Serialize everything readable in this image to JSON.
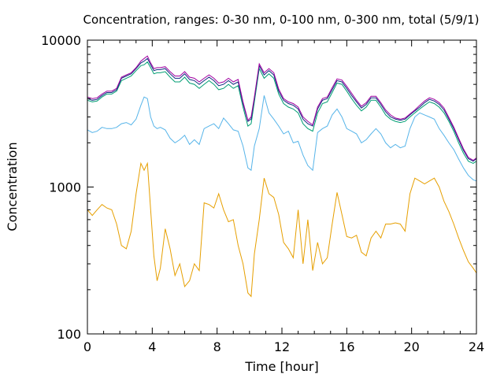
{
  "chart_data": {
    "type": "line",
    "title": "Concentration, ranges: 0-30 nm, 0-100 nm, 0-300 nm, total (5/9/1)",
    "xlabel": "Time [hour]",
    "ylabel": "Concentration",
    "xlim": [
      0,
      24
    ],
    "ylim": [
      100,
      10000
    ],
    "yscale": "log",
    "grid": false,
    "legend": "none",
    "x_ticks": [
      "0",
      "4",
      "8",
      "12",
      "16",
      "20",
      "24"
    ],
    "y_ticks": [
      "100",
      "1000",
      "10000"
    ],
    "series": [
      {
        "color": "#e69f00",
        "x": [
          0,
          0.3,
          0.6,
          0.9,
          1.2,
          1.5,
          1.8,
          2.1,
          2.4,
          2.7,
          3.0,
          3.3,
          3.5,
          3.7,
          3.9,
          4.1,
          4.3,
          4.5,
          4.8,
          5.1,
          5.4,
          5.7,
          6.0,
          6.3,
          6.6,
          6.9,
          7.2,
          7.5,
          7.8,
          8.1,
          8.4,
          8.7,
          9.0,
          9.3,
          9.6,
          9.9,
          10.1,
          10.3,
          10.6,
          10.9,
          11.2,
          11.5,
          11.8,
          12.1,
          12.4,
          12.7,
          13.0,
          13.3,
          13.6,
          13.9,
          14.2,
          14.5,
          14.8,
          15.1,
          15.4,
          15.7,
          16.0,
          16.3,
          16.6,
          16.9,
          17.2,
          17.5,
          17.8,
          18.1,
          18.4,
          18.7,
          19.0,
          19.3,
          19.6,
          19.9,
          20.2,
          20.5,
          20.8,
          21.1,
          21.4,
          21.7,
          22.0,
          22.3,
          22.6,
          22.9,
          23.2,
          23.5,
          23.8,
          24.0
        ],
        "values": [
          700,
          640,
          700,
          760,
          720,
          700,
          560,
          400,
          380,
          500,
          900,
          1450,
          1300,
          1450,
          700,
          340,
          230,
          280,
          520,
          380,
          250,
          300,
          210,
          230,
          300,
          270,
          780,
          760,
          720,
          900,
          700,
          580,
          600,
          400,
          300,
          190,
          180,
          350,
          600,
          1150,
          900,
          850,
          650,
          420,
          380,
          330,
          700,
          300,
          600,
          270,
          420,
          300,
          330,
          560,
          920,
          650,
          460,
          450,
          470,
          360,
          340,
          450,
          500,
          450,
          560,
          560,
          570,
          560,
          500,
          900,
          1150,
          1100,
          1050,
          1100,
          1150,
          1000,
          800,
          680,
          560,
          450,
          370,
          310,
          280,
          260
        ]
      },
      {
        "color": "#56b4e9",
        "x": [
          0,
          0.3,
          0.6,
          0.9,
          1.2,
          1.5,
          1.8,
          2.1,
          2.4,
          2.7,
          3.0,
          3.3,
          3.5,
          3.7,
          3.9,
          4.1,
          4.3,
          4.5,
          4.8,
          5.1,
          5.4,
          5.7,
          6.0,
          6.3,
          6.6,
          6.9,
          7.2,
          7.5,
          7.8,
          8.1,
          8.4,
          8.7,
          9.0,
          9.3,
          9.6,
          9.9,
          10.1,
          10.3,
          10.6,
          10.9,
          11.2,
          11.5,
          11.8,
          12.1,
          12.4,
          12.7,
          13.0,
          13.3,
          13.6,
          13.9,
          14.2,
          14.5,
          14.8,
          15.1,
          15.4,
          15.7,
          16.0,
          16.3,
          16.6,
          16.9,
          17.2,
          17.5,
          17.8,
          18.1,
          18.4,
          18.7,
          19.0,
          19.3,
          19.6,
          19.9,
          20.2,
          20.5,
          20.8,
          21.1,
          21.4,
          21.7,
          22.0,
          22.3,
          22.6,
          22.9,
          23.2,
          23.5,
          23.8,
          24.0
        ],
        "values": [
          2450,
          2350,
          2400,
          2550,
          2500,
          2500,
          2550,
          2700,
          2750,
          2650,
          2900,
          3600,
          4100,
          4000,
          3000,
          2600,
          2500,
          2550,
          2450,
          2150,
          2000,
          2100,
          2250,
          1950,
          2100,
          1950,
          2500,
          2600,
          2700,
          2500,
          2950,
          2700,
          2450,
          2400,
          1900,
          1350,
          1300,
          1900,
          2500,
          4200,
          3200,
          2900,
          2600,
          2300,
          2400,
          2000,
          2050,
          1650,
          1400,
          1300,
          2350,
          2500,
          2600,
          3100,
          3400,
          3000,
          2500,
          2400,
          2300,
          2000,
          2100,
          2300,
          2500,
          2300,
          2000,
          1850,
          1950,
          1850,
          1900,
          2500,
          3000,
          3200,
          3100,
          3000,
          2900,
          2500,
          2250,
          2000,
          1800,
          1550,
          1350,
          1200,
          1120,
          1100
        ]
      },
      {
        "color": "#009e73",
        "x": [
          0,
          0.3,
          0.6,
          0.9,
          1.2,
          1.5,
          1.8,
          2.1,
          2.4,
          2.7,
          3.0,
          3.3,
          3.5,
          3.7,
          3.9,
          4.1,
          4.3,
          4.5,
          4.8,
          5.1,
          5.4,
          5.7,
          6.0,
          6.3,
          6.6,
          6.9,
          7.2,
          7.5,
          7.8,
          8.1,
          8.4,
          8.7,
          9.0,
          9.3,
          9.6,
          9.9,
          10.1,
          10.3,
          10.6,
          10.9,
          11.2,
          11.5,
          11.8,
          12.1,
          12.4,
          12.7,
          13.0,
          13.3,
          13.6,
          13.9,
          14.2,
          14.5,
          14.8,
          15.1,
          15.4,
          15.7,
          16.0,
          16.3,
          16.6,
          16.9,
          17.2,
          17.5,
          17.8,
          18.1,
          18.4,
          18.7,
          19.0,
          19.3,
          19.6,
          19.9,
          20.2,
          20.5,
          20.8,
          21.1,
          21.4,
          21.7,
          22.0,
          22.3,
          22.6,
          22.9,
          23.2,
          23.5,
          23.8,
          24.0
        ],
        "values": [
          3900,
          3800,
          3850,
          4100,
          4300,
          4300,
          4500,
          5300,
          5500,
          5700,
          6200,
          6700,
          6800,
          7100,
          6500,
          5900,
          6000,
          6000,
          6100,
          5600,
          5200,
          5200,
          5600,
          5100,
          5000,
          4700,
          5000,
          5300,
          5000,
          4600,
          4700,
          5000,
          4700,
          4900,
          3500,
          2600,
          2700,
          3800,
          6400,
          5500,
          5900,
          5500,
          4300,
          3700,
          3500,
          3400,
          3200,
          2700,
          2500,
          2400,
          3200,
          3700,
          3800,
          4400,
          5100,
          5000,
          4500,
          4000,
          3600,
          3300,
          3500,
          3900,
          3900,
          3500,
          3100,
          2900,
          2800,
          2750,
          2800,
          3000,
          3200,
          3400,
          3600,
          3800,
          3700,
          3500,
          3200,
          2800,
          2400,
          2000,
          1700,
          1500,
          1450,
          1500
        ]
      },
      {
        "color": "#0f2a80",
        "x": [
          0,
          0.3,
          0.6,
          0.9,
          1.2,
          1.5,
          1.8,
          2.1,
          2.4,
          2.7,
          3.0,
          3.3,
          3.5,
          3.7,
          3.9,
          4.1,
          4.3,
          4.5,
          4.8,
          5.1,
          5.4,
          5.7,
          6.0,
          6.3,
          6.6,
          6.9,
          7.2,
          7.5,
          7.8,
          8.1,
          8.4,
          8.7,
          9.0,
          9.3,
          9.6,
          9.9,
          10.1,
          10.3,
          10.6,
          10.9,
          11.2,
          11.5,
          11.8,
          12.1,
          12.4,
          12.7,
          13.0,
          13.3,
          13.6,
          13.9,
          14.2,
          14.5,
          14.8,
          15.1,
          15.4,
          15.7,
          16.0,
          16.3,
          16.6,
          16.9,
          17.2,
          17.5,
          17.8,
          18.1,
          18.4,
          18.7,
          19.0,
          19.3,
          19.6,
          19.9,
          20.2,
          20.5,
          20.8,
          21.1,
          21.4,
          21.7,
          22.0,
          22.3,
          22.6,
          22.9,
          23.2,
          23.5,
          23.8,
          24.0
        ],
        "values": [
          4000,
          3900,
          3950,
          4200,
          4400,
          4400,
          4600,
          5500,
          5700,
          5900,
          6400,
          7000,
          7200,
          7500,
          6800,
          6200,
          6300,
          6300,
          6400,
          5900,
          5500,
          5500,
          5900,
          5400,
          5300,
          5000,
          5300,
          5600,
          5300,
          4900,
          5000,
          5300,
          5000,
          5200,
          3700,
          2800,
          2900,
          4000,
          6700,
          5800,
          6200,
          5800,
          4500,
          3900,
          3700,
          3600,
          3400,
          2900,
          2700,
          2600,
          3400,
          3900,
          4000,
          4600,
          5300,
          5200,
          4700,
          4200,
          3800,
          3450,
          3650,
          4050,
          4050,
          3650,
          3250,
          3000,
          2900,
          2850,
          2900,
          3100,
          3300,
          3500,
          3750,
          3950,
          3850,
          3650,
          3350,
          2900,
          2500,
          2100,
          1780,
          1560,
          1500,
          1560
        ]
      },
      {
        "color": "#a000a0",
        "x": [
          0,
          0.3,
          0.6,
          0.9,
          1.2,
          1.5,
          1.8,
          2.1,
          2.4,
          2.7,
          3.0,
          3.3,
          3.5,
          3.7,
          3.9,
          4.1,
          4.3,
          4.5,
          4.8,
          5.1,
          5.4,
          5.7,
          6.0,
          6.3,
          6.6,
          6.9,
          7.2,
          7.5,
          7.8,
          8.1,
          8.4,
          8.7,
          9.0,
          9.3,
          9.6,
          9.9,
          10.1,
          10.3,
          10.6,
          10.9,
          11.2,
          11.5,
          11.8,
          12.1,
          12.4,
          12.7,
          13.0,
          13.3,
          13.6,
          13.9,
          14.2,
          14.5,
          14.8,
          15.1,
          15.4,
          15.7,
          16.0,
          16.3,
          16.6,
          16.9,
          17.2,
          17.5,
          17.8,
          18.1,
          18.4,
          18.7,
          19.0,
          19.3,
          19.6,
          19.9,
          20.2,
          20.5,
          20.8,
          21.1,
          21.4,
          21.7,
          22.0,
          22.3,
          22.6,
          22.9,
          23.2,
          23.5,
          23.8,
          24.0
        ],
        "values": [
          4100,
          4000,
          4050,
          4300,
          4500,
          4500,
          4700,
          5600,
          5800,
          6000,
          6500,
          7200,
          7500,
          7800,
          7000,
          6400,
          6500,
          6500,
          6600,
          6100,
          5700,
          5700,
          6100,
          5600,
          5500,
          5200,
          5500,
          5800,
          5500,
          5100,
          5200,
          5500,
          5200,
          5400,
          3800,
          2850,
          3000,
          4100,
          6900,
          6000,
          6400,
          6000,
          4650,
          4000,
          3800,
          3700,
          3500,
          3000,
          2800,
          2650,
          3500,
          4000,
          4100,
          4750,
          5450,
          5350,
          4850,
          4350,
          3900,
          3550,
          3750,
          4150,
          4150,
          3750,
          3350,
          3100,
          2950,
          2900,
          2950,
          3150,
          3350,
          3600,
          3850,
          4050,
          3950,
          3750,
          3450,
          2980,
          2560,
          2150,
          1820,
          1590,
          1520,
          1580
        ]
      }
    ]
  }
}
